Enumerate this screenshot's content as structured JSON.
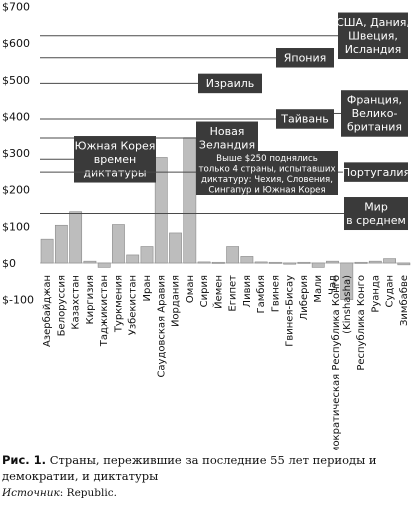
{
  "chart_data": {
    "type": "bar",
    "ylim": [
      -100,
      700
    ],
    "yticks": [
      -100,
      0,
      100,
      200,
      300,
      400,
      500,
      600,
      700
    ],
    "ytick_labels": [
      "$-100",
      "$0",
      "$100",
      "$200",
      "$300",
      "$400",
      "$500",
      "$600",
      "$700"
    ],
    "categories": [
      "Азербайджан",
      "Белоруссия",
      "Казахстан",
      "Киргизия",
      "Таджикистан",
      "Туркмения",
      "Узбекистан",
      "Иран",
      "Саудовская Аравия",
      "Иордания",
      "Оман",
      "Сирия",
      "Йемен",
      "Египет",
      "Ливия",
      "Гамбия",
      "Гвинея",
      "Гвинея-Бисау",
      "Либерия",
      "Мали",
      "Чад",
      "Демократическая Республика Конго (Kinshasha)",
      "Республика Конго",
      "Руанда",
      "Судан",
      "Зимбабве"
    ],
    "values": [
      65,
      103,
      140,
      5,
      -12,
      105,
      22,
      45,
      288,
      82,
      342,
      3,
      2,
      45,
      18,
      3,
      2,
      0,
      2,
      -12,
      5,
      -100,
      2,
      5,
      12,
      -5
    ],
    "annotations": [
      {
        "text": "США, Дания, Швеция, Исландия",
        "value": 620
      },
      {
        "text": "Япония",
        "value": 560
      },
      {
        "text": "Израиль",
        "value": 490
      },
      {
        "text": "Тайвань",
        "value": 393
      },
      {
        "text": "Франция, Великобритания",
        "value": 408
      },
      {
        "text": "Новая Зеландия",
        "value": 341
      },
      {
        "text": "Южная Корея времен диктатуры",
        "value": 283
      },
      {
        "text": "Португалия",
        "value": 248
      },
      {
        "text": "Мир в среднем",
        "value": 135
      }
    ],
    "note": "Выше $250 поднялись только 4 страны, испытавших диктатуру: Чехия, Словения, Сингапур и Южная Корея",
    "grid": false,
    "colors": {
      "bar": "#bdbdbd",
      "bar_edge": "#8a8a8a",
      "label_box": "#3a3a3a",
      "line": "#4a4a4a"
    }
  },
  "caption": {
    "figure_label": "Рис. 1.",
    "text": "Страны, пережившие за последние 55 лет периоды и демократии, и диктатуры",
    "source_label": "Источник",
    "source_text": ": Republic."
  }
}
